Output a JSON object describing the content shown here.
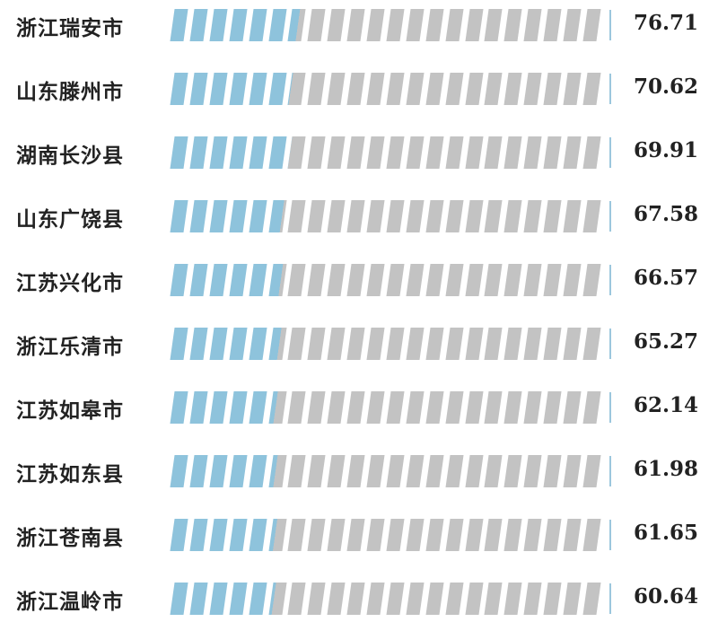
{
  "chart_data": {
    "type": "bar",
    "orientation": "horizontal",
    "categories": [
      "浙江瑞安市",
      "山东滕州市",
      "湖南长沙县",
      "山东广饶县",
      "江苏兴化市",
      "浙江乐清市",
      "江苏如皋市",
      "江苏如东县",
      "浙江苍南县",
      "浙江温岭市"
    ],
    "values": [
      76.71,
      70.62,
      69.91,
      67.58,
      66.57,
      65.27,
      62.14,
      61.98,
      61.65,
      60.64
    ],
    "value_labels": [
      "76.71",
      "70.62",
      "69.91",
      "67.58",
      "66.57",
      "65.27",
      "62.14",
      "61.98",
      "61.65",
      "60.64"
    ],
    "xlim": [
      0,
      256
    ],
    "segments": 22,
    "colors": {
      "fill": "#8ec3dc",
      "empty": "#c3c3c3",
      "tick": "#9cc7dd"
    },
    "grid": false
  }
}
